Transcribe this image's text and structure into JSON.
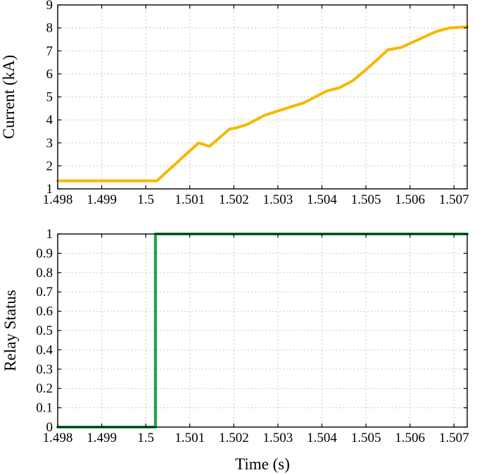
{
  "chart_data": [
    {
      "type": "line",
      "title": "",
      "xlabel": "",
      "ylabel": "Current (kA)",
      "xlim": [
        1.498,
        1.5073
      ],
      "ylim": [
        1,
        9
      ],
      "xticks": [
        1.498,
        1.499,
        1.5,
        1.501,
        1.502,
        1.503,
        1.504,
        1.505,
        1.506,
        1.507
      ],
      "xtick_labels": [
        "1.498",
        "1.499",
        "1.5",
        "1.501",
        "1.502",
        "1.503",
        "1.504",
        "1.505",
        "1.506",
        "1.507"
      ],
      "yticks": [
        1,
        2,
        3,
        4,
        5,
        6,
        7,
        8,
        9
      ],
      "ytick_labels": [
        "1",
        "2",
        "3",
        "4",
        "5",
        "6",
        "7",
        "8",
        "9"
      ],
      "grid": true,
      "series": [
        {
          "color": "#f5b800",
          "x": [
            1.498,
            1.50025,
            1.5012,
            1.50145,
            1.5019,
            1.50205,
            1.5023,
            1.5027,
            1.5031,
            1.5036,
            1.5041,
            1.5044,
            1.5047,
            1.5051,
            1.5055,
            1.5058,
            1.5062,
            1.5066,
            1.5069,
            1.5073
          ],
          "y": [
            1.35,
            1.35,
            3.0,
            2.85,
            3.6,
            3.65,
            3.8,
            4.2,
            4.45,
            4.75,
            5.25,
            5.4,
            5.7,
            6.35,
            7.05,
            7.15,
            7.5,
            7.85,
            8.0,
            8.05
          ]
        }
      ]
    },
    {
      "type": "line",
      "title": "",
      "xlabel": "Time (s)",
      "ylabel": "Relay Status",
      "xlim": [
        1.498,
        1.5073
      ],
      "ylim": [
        0,
        1
      ],
      "xticks": [
        1.498,
        1.499,
        1.5,
        1.501,
        1.502,
        1.503,
        1.504,
        1.505,
        1.506,
        1.507
      ],
      "xtick_labels": [
        "1.498",
        "1.499",
        "1.5",
        "1.501",
        "1.502",
        "1.503",
        "1.504",
        "1.505",
        "1.506",
        "1.507"
      ],
      "yticks": [
        0,
        0.1,
        0.2,
        0.3,
        0.4,
        0.5,
        0.6,
        0.7,
        0.8,
        0.9,
        1
      ],
      "ytick_labels": [
        "0",
        "0.1",
        "0.2",
        "0.3",
        "0.4",
        "0.5",
        "0.6",
        "0.7",
        "0.8",
        "0.9",
        "1"
      ],
      "grid": true,
      "series": [
        {
          "color": "#1aa34a",
          "x": [
            1.498,
            1.50022,
            1.50022,
            1.5073
          ],
          "y": [
            0,
            0,
            1,
            1
          ]
        }
      ]
    }
  ]
}
